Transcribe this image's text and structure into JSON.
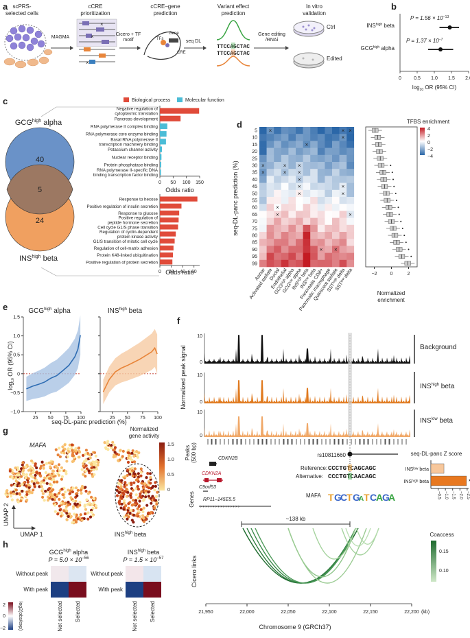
{
  "panel_labels": [
    "a",
    "b",
    "c",
    "d",
    "e",
    "f",
    "g",
    "h"
  ],
  "panel_a": {
    "steps": [
      {
        "title": "scPRS-\nselected cells"
      },
      {
        "title": "cCRE\nprioritization"
      },
      {
        "title": "cCRE–gene\nprediction"
      },
      {
        "title": "Variant effect\nprediction"
      },
      {
        "title": "In vitro\nvalidation"
      }
    ],
    "arrows": [
      "MAGMA",
      "Cicero + TF\nmotif",
      "seq DL",
      "Gene editing\n/RNAi"
    ],
    "gene_label": "Gene",
    "tfs_label": "TFs",
    "cre_label": "CRE",
    "seq_ref": "TTCCAGCTAC",
    "seq_alt": "TTCCAGCTAC",
    "dish_labels": [
      "Ctrl",
      "Edited"
    ]
  },
  "panel_b": {
    "rows": [
      {
        "label": "INS",
        "sup": "high",
        "suffix": " beta",
        "p_text": "P = 1.56 × 10",
        "p_exp": "−13"
      },
      {
        "label": "GCG",
        "sup": "high",
        "suffix": " alpha",
        "p_text": "P = 1.37 × 10",
        "p_exp": "−7"
      }
    ],
    "xlabel": "log",
    "xlabel_sub": "10",
    "xlabel_rest": " OR (95% CI)",
    "xticks": [
      "0",
      "0.5",
      "1.0",
      "1.5",
      "2.0"
    ]
  },
  "chart_data": [
    {
      "panel": "b",
      "type": "scatter",
      "title": "",
      "xlabel": "log10 OR (95% CI)",
      "xlim": [
        0,
        2.0
      ],
      "series": [
        {
          "name": "INShigh beta",
          "value": 1.45,
          "ci": [
            1.15,
            1.72
          ]
        },
        {
          "name": "GCGhigh alpha",
          "value": 1.18,
          "ci": [
            0.82,
            1.55
          ]
        }
      ]
    },
    {
      "panel": "c-top",
      "type": "bar",
      "title": "GCGhigh alpha GO enrichment",
      "xlabel": "Odds ratio",
      "xlim": [
        0,
        150
      ],
      "xticks": [
        0,
        50,
        100,
        150
      ],
      "categories": [
        "Negative regulation of cytoplasmic translation",
        "Pancreas development",
        "RNA polymerase II complex binding",
        "RNA polymerase core enzyme binding",
        "Basal RNA polymerase II transcription machinery binding",
        "Potassium channel activity",
        "Nuclear receptor binding",
        "Protein phosphatase binding",
        "RNA polymerase II-specific DNA binding transcription factor binding"
      ],
      "values": [
        148,
        78,
        28,
        25,
        23,
        8,
        6,
        5,
        4
      ],
      "groups": [
        "bio",
        "bio",
        "mol",
        "mol",
        "mol",
        "mol",
        "mol",
        "mol",
        "mol"
      ]
    },
    {
      "panel": "c-bottom",
      "type": "bar",
      "title": "INShigh beta GO enrichment",
      "xlabel": "Odds ratio",
      "xlim": [
        0,
        70
      ],
      "xticks": [
        0,
        20,
        40,
        60
      ],
      "categories": [
        "Response to hexose",
        "Positive regulation of insulin secretion",
        "Response to glucose",
        "Positive regulation of peptide hormone secretion",
        "Cell cycle G1/S phase transition",
        "Regulation of cyclin-dependent protein kinase activity",
        "G1/S transition of mitotic cell cycle",
        "Regulation of cell-matrix adhesion",
        "Protein K48-linked ubiquitination",
        "Positive regulation of protein secretion"
      ],
      "values": [
        66,
        38,
        34,
        33,
        32,
        28,
        26,
        24,
        23,
        22
      ],
      "groups": [
        "bio",
        "bio",
        "bio",
        "bio",
        "bio",
        "bio",
        "bio",
        "bio",
        "bio",
        "bio"
      ]
    },
    {
      "panel": "d",
      "type": "heatmap",
      "title": "TFBS enrichment",
      "ylabel": "seq-DL-panc prediction (%)",
      "rows": [
        "5",
        "10",
        "15",
        "20",
        "25",
        "30",
        "35",
        "40",
        "45",
        "50",
        "55",
        "60",
        "65",
        "70",
        "75",
        "80",
        "85",
        "90",
        "95",
        "99"
      ],
      "columns": [
        "Acinar",
        "Activated stellate",
        "Ductal",
        "Endothelial",
        "GCGhigh alpha",
        "GCGlow alpha",
        "INShigh beta",
        "INSlow beta",
        "Pancreatic CD8+",
        "Pancreatic macrophage",
        "Quiescent stellate",
        "SSThigh delta",
        "SSTlow delta"
      ],
      "color_range": [
        -4,
        4
      ],
      "colorbar_ticks": [
        "4",
        "2",
        "0",
        "−2",
        "−4"
      ]
    },
    {
      "panel": "d-box",
      "type": "scatter",
      "title": "",
      "xlabel": "Normalized enrichment",
      "xlim": [
        -3,
        3
      ],
      "xticks": [
        "−2",
        "0",
        "2"
      ],
      "medians": [
        -1.9,
        -1.6,
        -1.5,
        -1.4,
        -1.3,
        -1.2,
        -1.0,
        -0.9,
        -0.8,
        -0.6,
        -0.5,
        -0.3,
        -0.2,
        0.0,
        0.2,
        0.4,
        0.6,
        0.9,
        1.2,
        1.9
      ]
    },
    {
      "panel": "e",
      "type": "line",
      "series": [
        {
          "name": "GCGhigh alpha",
          "x": [
            10,
            20,
            30,
            40,
            50,
            60,
            70,
            80,
            90,
            95,
            99
          ],
          "values": [
            -0.4,
            -0.33,
            -0.28,
            -0.22,
            -0.12,
            -0.05,
            0.08,
            0.22,
            0.45,
            0.65,
            1.02
          ]
        },
        {
          "name": "INShigh beta",
          "x": [
            10,
            20,
            30,
            40,
            50,
            60,
            70,
            80,
            90,
            95,
            99
          ],
          "values": [
            -0.48,
            -0.15,
            0.05,
            0.15,
            0.22,
            0.3,
            0.38,
            0.48,
            0.58,
            0.68,
            0.52
          ]
        }
      ],
      "xlabel": "seq-DL-panc prediction (%)",
      "ylabel": "log10 OR (95% CI)",
      "ylim": [
        -1.0,
        1.5
      ],
      "xticks": [
        "25",
        "50",
        "75",
        "100"
      ],
      "yticks": [
        "1.5",
        "1.0",
        "0.5",
        "0",
        "−0.5",
        "−1.0"
      ]
    },
    {
      "panel": "f-zscore",
      "type": "bar",
      "title": "seq-DL-panc Z score",
      "categories": [
        "INSlow beta",
        "INShigh beta"
      ],
      "values": [
        -0.9,
        -2.45
      ],
      "xticks": [
        "−0.5",
        "−1.0",
        "−1.5",
        "−2.0",
        "−2.5"
      ]
    },
    {
      "panel": "h",
      "type": "heatmap",
      "colorbar_ticks": [
        "2",
        "0",
        "−2"
      ],
      "colorbar_label": "log2(obs/exp)"
    }
  ],
  "panel_c": {
    "legend": [
      {
        "label": "Biological process",
        "color": "#e04b3a"
      },
      {
        "label": "Molecular function",
        "color": "#4bbcd6"
      }
    ],
    "venn_top_title": "GCG",
    "venn_top_sup": "high",
    "venn_top_suffix": " alpha",
    "venn_bottom_title": "INS",
    "venn_bottom_sup": "high",
    "venn_bottom_suffix": " beta",
    "venn_counts": [
      "40",
      "5",
      "24"
    ],
    "xlabel": "Odds ratio"
  },
  "panel_d": {
    "colorbar_title": "TFBS enrichment",
    "ylabel": "seq-DL-panc prediction (%)",
    "box_xlabel": "Normalized\nenrichment"
  },
  "panel_e": {
    "titles": [
      {
        "main": "GCG",
        "sup": "high",
        "suffix": " alpha"
      },
      {
        "main": "INS",
        "sup": "high",
        "suffix": " beta"
      }
    ],
    "xlabel": "seq-DL-panc prediction (%)",
    "ylabel": "log",
    "ylabel_sub": "10",
    "ylabel_rest": " OR (95% CI)"
  },
  "panel_f": {
    "ylabel": "Normalized peak signal",
    "tracks": [
      {
        "label": "Background",
        "sup": "",
        "suffix": ""
      },
      {
        "label": "INS",
        "sup": "high",
        "suffix": " beta"
      },
      {
        "label": "INS",
        "sup": "low",
        "suffix": " beta"
      }
    ],
    "ytick": "10",
    "peaks_label": "Peaks\n(500 bp)",
    "genes_label": "Genes",
    "snp": "rs10811660",
    "genes": [
      "CDKN2B",
      "CDKN2A",
      "C9orf53",
      "RP11–145E5.5"
    ],
    "ref_label": "Reference:",
    "ref_seq": "CCCTGTCAGCAGC",
    "alt_label": "Alternative:",
    "alt_seq": "CCCTGTCAACAGC",
    "mafa": "MAFA",
    "z_title": "seq-DL-panc Z score",
    "z_star": "*",
    "distance": "~138 kb",
    "cicero_label": "Cicero links",
    "coaccess_title": "Coaccess",
    "coaccess_ticks": [
      "0.15",
      "0.10"
    ],
    "xticks": [
      "21,950",
      "22,000",
      "22,050",
      "22,100",
      "22,150",
      "22,200",
      "(kb)"
    ],
    "xlabel": "Chromosome 9 (GRCh37)"
  },
  "panel_g": {
    "gene": "MAFA",
    "colorbar_title": "Normalized\ngene activity",
    "colorbar_ticks": [
      "1.5",
      "1.0",
      "0.5",
      "0"
    ],
    "umap1": "UMAP 1",
    "umap2": "UMAP 2",
    "region_label": "INS",
    "region_sup": "high",
    "region_suffix": " beta"
  },
  "panel_h": {
    "maps": [
      {
        "title": "GCG",
        "sup": "high",
        "suffix": " alpha",
        "p_text": "P = 5.0 × 10",
        "p_exp": "−56"
      },
      {
        "title": "INS",
        "sup": "high",
        "suffix": " beta",
        "p_text": "P = 1.5 × 10",
        "p_exp": "−57"
      }
    ],
    "rows": [
      "Without peak",
      "With peak"
    ],
    "cols": [
      "Not selected",
      "Selected"
    ],
    "colorbar_ticks": [
      "2",
      "0",
      "−2"
    ],
    "colorbar_label": "log2(obs/exp)"
  }
}
